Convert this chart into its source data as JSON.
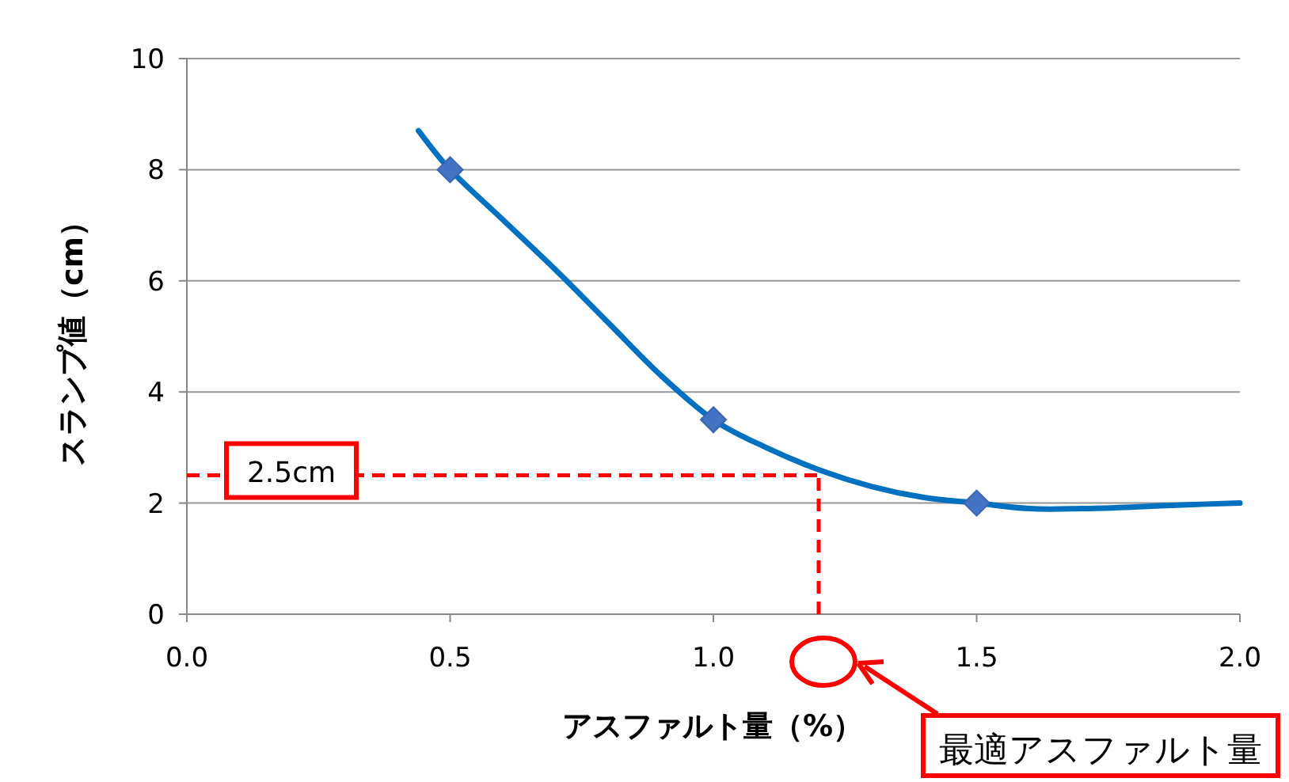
{
  "chart_data": {
    "type": "line",
    "xlabel": "アスファルト量（%）",
    "ylabel": "スランプ値（cm）",
    "xlim": [
      0,
      2
    ],
    "ylim": [
      0,
      10
    ],
    "xticks": [
      {
        "value": 0,
        "label": "0.0"
      },
      {
        "value": 0.5,
        "label": "0.5"
      },
      {
        "value": 1,
        "label": "1.0"
      },
      {
        "value": 1.5,
        "label": "1.5"
      },
      {
        "value": 2,
        "label": "2.0"
      }
    ],
    "yticks": [
      0,
      2,
      4,
      6,
      8,
      10
    ],
    "grid": "y",
    "series": [
      {
        "color": "#0070c0",
        "marker": "none",
        "x": [
          0.44,
          0.5,
          0.6,
          0.7,
          0.8,
          0.9,
          1.0,
          1.1,
          1.2,
          1.3,
          1.4,
          1.5,
          1.6,
          1.7,
          1.8,
          1.9,
          2.0
        ],
        "values": [
          8.7,
          8,
          7.1,
          6.2,
          5.25,
          4.3,
          3.5,
          3.0,
          2.6,
          2.3,
          2.1,
          2.0,
          1.9,
          1.9,
          1.93,
          1.97,
          2.0
        ]
      },
      {
        "type": "scatter",
        "color": "#4472c4",
        "marker": "diamond",
        "x": [
          0.5,
          1.0,
          1.5
        ],
        "values": [
          8,
          3.5,
          2
        ]
      }
    ],
    "ref_lines": [
      {
        "axis": "y",
        "value": 2.5,
        "label": "2.5cm",
        "color": "#ff0000",
        "line_style": "dashed"
      },
      {
        "axis": "x",
        "value": 1.2,
        "color": "#ff0000",
        "line_style": "dashed"
      }
    ],
    "annotations": [
      "最適アスファルト量"
    ]
  }
}
